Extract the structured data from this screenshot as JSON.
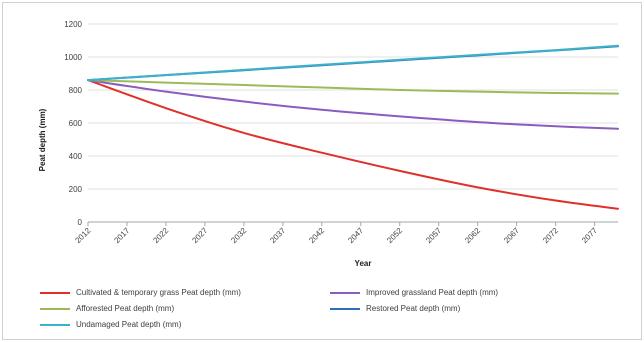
{
  "chart_data": {
    "type": "line",
    "title": "",
    "xlabel": "Year",
    "ylabel": "Peat depth (mm)",
    "ylim": [
      0,
      1200
    ],
    "y_ticks": [
      "0",
      "200",
      "400",
      "600",
      "800",
      "1000",
      "1200"
    ],
    "x_start": 2012,
    "x_end": 2080,
    "x_tick_labels": [
      "2012",
      "2017",
      "2022",
      "2027",
      "2032",
      "2037",
      "2042",
      "2047",
      "2052",
      "2057",
      "2062",
      "2067",
      "2072",
      "2077"
    ],
    "x": [
      2012,
      2022,
      2032,
      2042,
      2052,
      2062,
      2072,
      2080
    ],
    "grid": "horizontal",
    "legend_position": "bottom",
    "series": [
      {
        "name": "Cultivated & temporary grass Peat depth (mm)",
        "color": "#e0302c",
        "values": [
          860,
          690,
          540,
          420,
          310,
          210,
          130,
          80
        ]
      },
      {
        "name": "Improved grassland Peat depth (mm)",
        "color": "#8a5cbf",
        "values": [
          860,
          790,
          730,
          680,
          640,
          605,
          580,
          565
        ]
      },
      {
        "name": "Afforested Peat depth (mm)",
        "color": "#9bbb59",
        "values": [
          860,
          845,
          830,
          815,
          800,
          790,
          782,
          778
        ]
      },
      {
        "name": "Restored Peat depth (mm)",
        "color": "#2e6fb7",
        "values": [
          860,
          890,
          920,
          950,
          980,
          1010,
          1040,
          1065
        ]
      },
      {
        "name": "Undamaged Peat depth (mm)",
        "color": "#3ab3c8",
        "values": [
          860,
          891,
          922,
          953,
          983,
          1013,
          1042,
          1068
        ]
      }
    ]
  }
}
